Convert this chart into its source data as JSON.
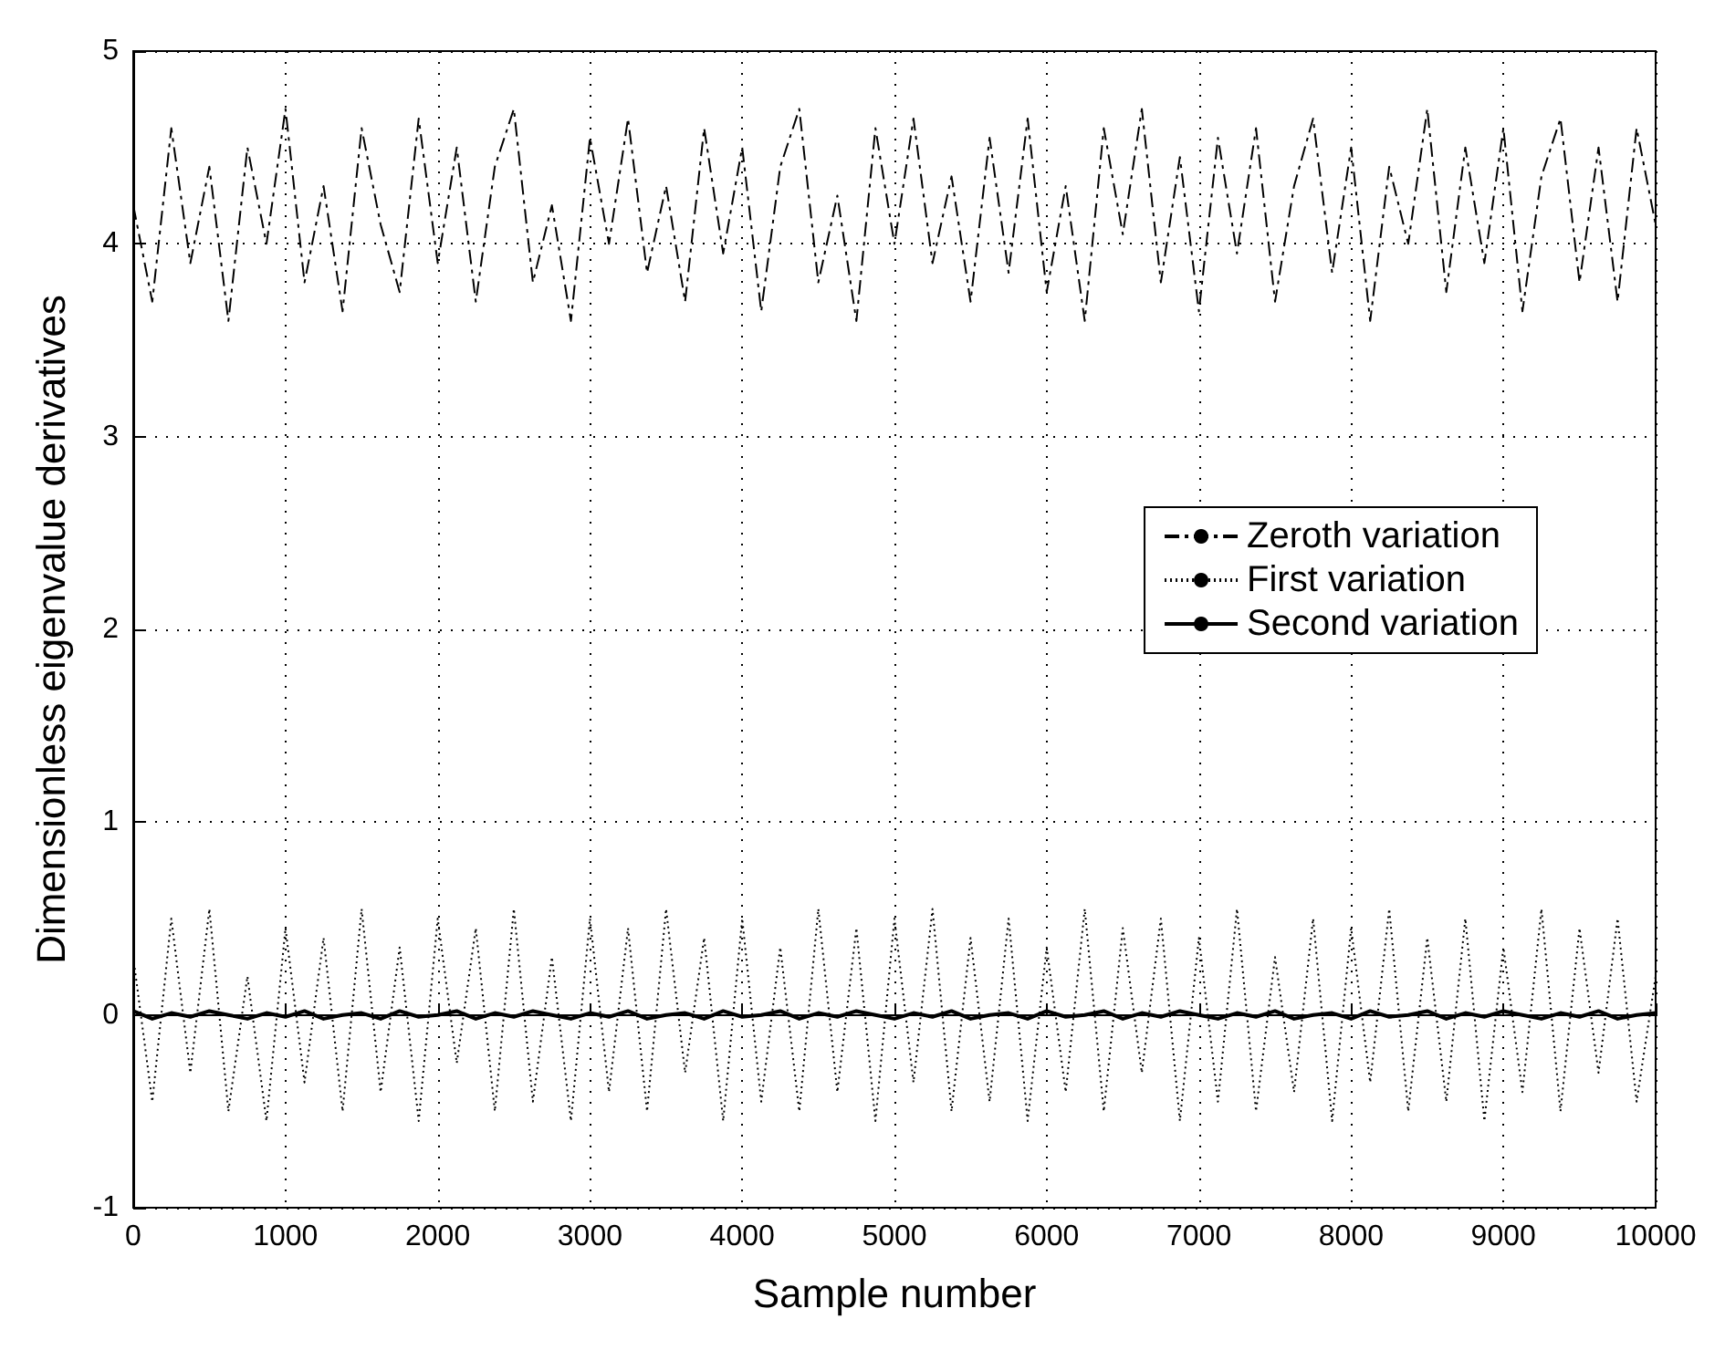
{
  "chart_data": {
    "type": "line",
    "xlabel": "Sample number",
    "ylabel": "Dimensionless eigenvalue derivatives",
    "x": [
      0,
      125,
      250,
      375,
      500,
      625,
      750,
      875,
      1000,
      1125,
      1250,
      1375,
      1500,
      1625,
      1750,
      1875,
      2000,
      2125,
      2250,
      2375,
      2500,
      2625,
      2750,
      2875,
      3000,
      3125,
      3250,
      3375,
      3500,
      3625,
      3750,
      3875,
      4000,
      4125,
      4250,
      4375,
      4500,
      4625,
      4750,
      4875,
      5000,
      5125,
      5250,
      5375,
      5500,
      5625,
      5750,
      5875,
      6000,
      6125,
      6250,
      6375,
      6500,
      6625,
      6750,
      6875,
      7000,
      7125,
      7250,
      7375,
      7500,
      7625,
      7750,
      7875,
      8000,
      8125,
      8250,
      8375,
      8500,
      8625,
      8750,
      8875,
      9000,
      9125,
      9250,
      9375,
      9500,
      9625,
      9750,
      9875,
      10000
    ],
    "series": [
      {
        "name": "Zeroth variation",
        "color": "#000000",
        "line_style": "dashed",
        "values": [
          4.2,
          3.7,
          4.6,
          3.9,
          4.4,
          3.6,
          4.5,
          4.0,
          4.7,
          3.8,
          4.3,
          3.65,
          4.6,
          4.1,
          3.75,
          4.65,
          3.9,
          4.5,
          3.7,
          4.4,
          4.7,
          3.8,
          4.2,
          3.6,
          4.55,
          4.0,
          4.65,
          3.85,
          4.3,
          3.7,
          4.6,
          3.95,
          4.5,
          3.65,
          4.4,
          4.7,
          3.8,
          4.25,
          3.6,
          4.6,
          4.0,
          4.65,
          3.9,
          4.35,
          3.7,
          4.55,
          3.85,
          4.65,
          3.75,
          4.3,
          3.6,
          4.6,
          4.05,
          4.7,
          3.8,
          4.45,
          3.65,
          4.55,
          3.95,
          4.6,
          3.7,
          4.3,
          4.65,
          3.85,
          4.5,
          3.6,
          4.4,
          4.0,
          4.7,
          3.75,
          4.5,
          3.9,
          4.6,
          3.65,
          4.35,
          4.65,
          3.8,
          4.5,
          3.7,
          4.6,
          4.1
        ]
      },
      {
        "name": "First variation",
        "color": "#000000",
        "line_style": "dotted",
        "values": [
          0.3,
          -0.45,
          0.5,
          -0.3,
          0.55,
          -0.5,
          0.2,
          -0.55,
          0.45,
          -0.35,
          0.4,
          -0.5,
          0.55,
          -0.4,
          0.35,
          -0.55,
          0.5,
          -0.25,
          0.45,
          -0.5,
          0.55,
          -0.45,
          0.3,
          -0.55,
          0.5,
          -0.4,
          0.45,
          -0.5,
          0.55,
          -0.3,
          0.4,
          -0.55,
          0.5,
          -0.45,
          0.35,
          -0.5,
          0.55,
          -0.4,
          0.45,
          -0.55,
          0.5,
          -0.35,
          0.55,
          -0.5,
          0.4,
          -0.45,
          0.5,
          -0.55,
          0.35,
          -0.4,
          0.55,
          -0.5,
          0.45,
          -0.3,
          0.5,
          -0.55,
          0.4,
          -0.45,
          0.55,
          -0.5,
          0.3,
          -0.4,
          0.5,
          -0.55,
          0.45,
          -0.35,
          0.55,
          -0.5,
          0.4,
          -0.45,
          0.5,
          -0.55,
          0.35,
          -0.4,
          0.55,
          -0.5,
          0.45,
          -0.3,
          0.5,
          -0.45,
          0.2
        ]
      },
      {
        "name": "Second variation",
        "color": "#000000",
        "line_style": "solid",
        "values": [
          0.02,
          -0.02,
          0.01,
          -0.01,
          0.02,
          0,
          -0.02,
          0.01,
          -0.01,
          0.02,
          -0.02,
          0,
          0.01,
          -0.02,
          0.02,
          -0.01,
          0,
          0.02,
          -0.02,
          0.01,
          -0.01,
          0.02,
          0,
          -0.02,
          0.01,
          -0.01,
          0.02,
          -0.02,
          0,
          0.01,
          -0.02,
          0.02,
          -0.01,
          0,
          0.02,
          -0.02,
          0.01,
          -0.01,
          0.02,
          0,
          -0.02,
          0.01,
          -0.01,
          0.02,
          -0.02,
          0,
          0.01,
          -0.02,
          0.02,
          -0.01,
          0,
          0.02,
          -0.02,
          0.01,
          -0.01,
          0.02,
          0,
          -0.02,
          0.01,
          -0.01,
          0.02,
          -0.02,
          0,
          0.01,
          -0.02,
          0.02,
          -0.01,
          0,
          0.02,
          -0.02,
          0.01,
          -0.01,
          0.02,
          0,
          -0.02,
          0.01,
          -0.01,
          0.02,
          -0.02,
          0,
          0.01
        ]
      }
    ],
    "xlim": [
      0,
      10000
    ],
    "xticks": [
      0,
      1000,
      2000,
      3000,
      4000,
      5000,
      6000,
      7000,
      8000,
      9000,
      10000
    ],
    "ylim": [
      -1,
      5
    ],
    "yticks": [
      -1,
      0,
      1,
      2,
      3,
      4,
      5
    ],
    "grid": true,
    "legend": "right",
    "marker": "none"
  }
}
